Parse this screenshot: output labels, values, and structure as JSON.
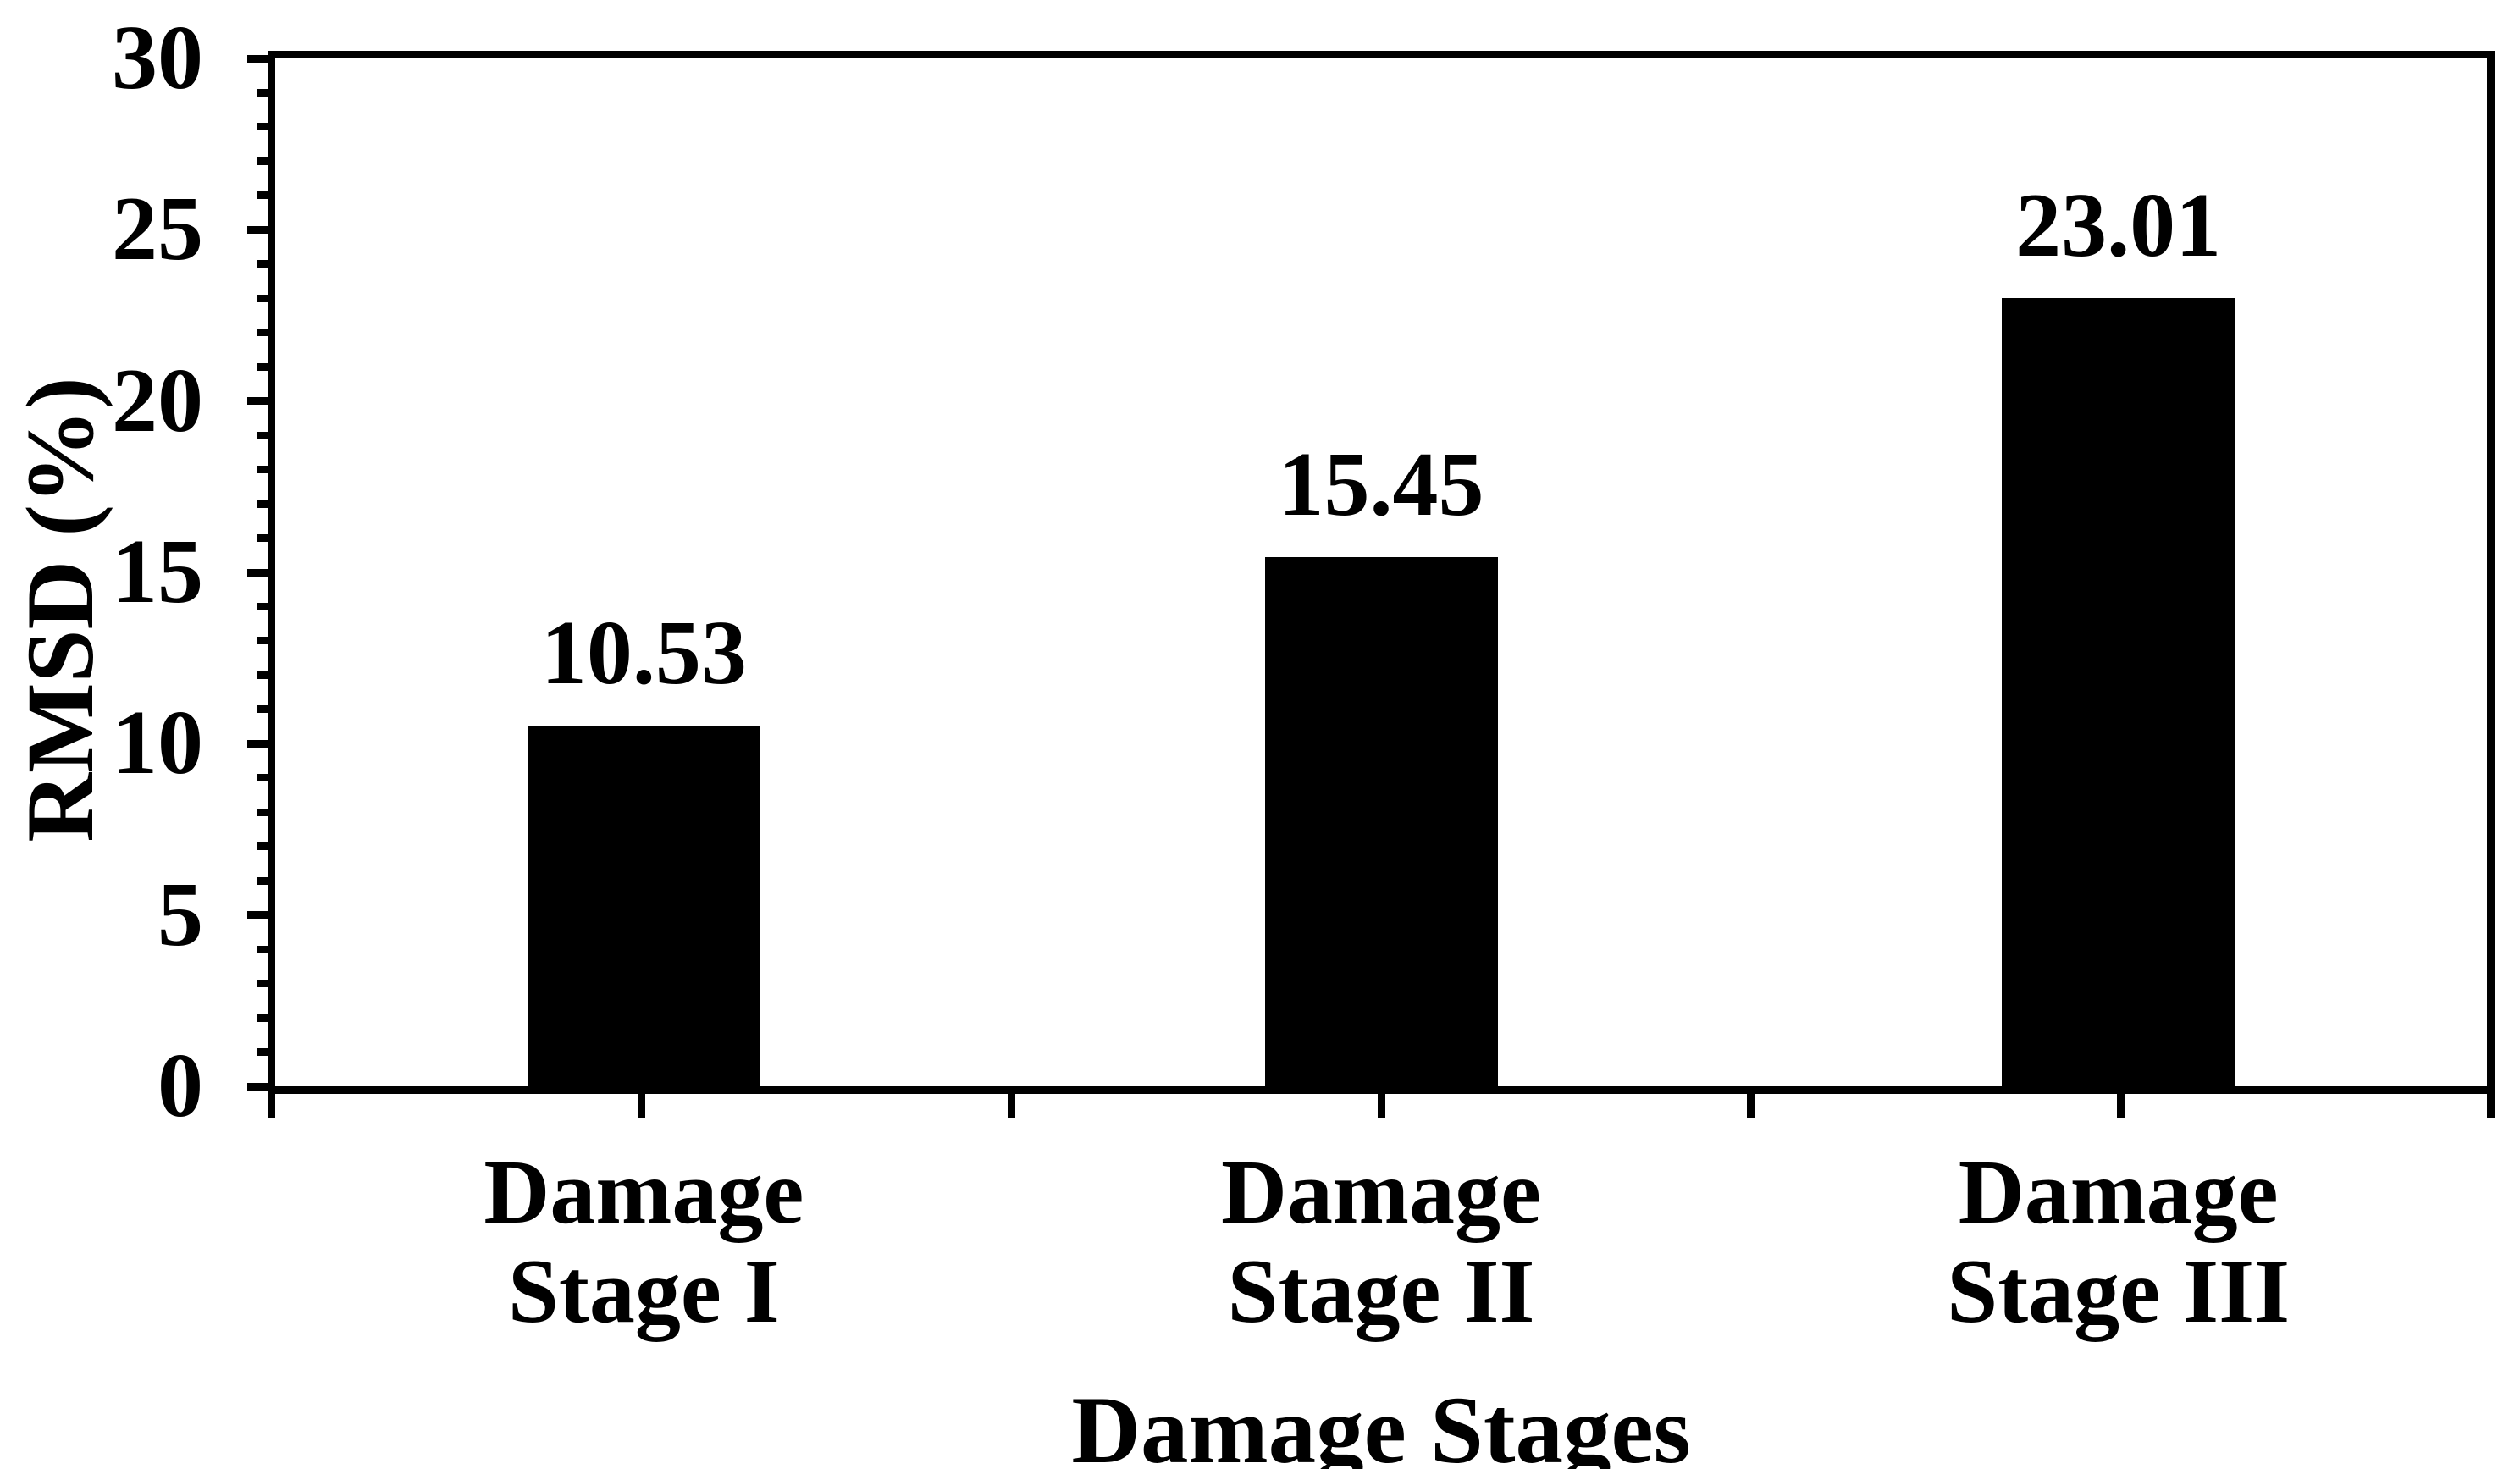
{
  "chart_data": {
    "type": "bar",
    "title": "",
    "categories": [
      [
        "Damage",
        "Stage I"
      ],
      [
        "Damage",
        "Stage II"
      ],
      [
        "Damage",
        "Stage III"
      ]
    ],
    "values": [
      10.53,
      15.45,
      23.01
    ],
    "value_labels": [
      "10.53",
      "15.45",
      "23.01"
    ],
    "xlabel": "Damage Stages",
    "ylabel": "RMSD (%)",
    "ylim": [
      0,
      30
    ],
    "y_major_ticks": [
      0,
      5,
      10,
      15,
      20,
      25,
      30
    ],
    "y_major_tick_labels": [
      "0",
      "5",
      "10",
      "15",
      "20",
      "25",
      "30"
    ],
    "y_minor_tick_step": 1,
    "grid": "off",
    "legend": "none",
    "frame": "full-box",
    "bar_color": "#000000",
    "text_color": "#000000",
    "background_color": "#ffffff"
  }
}
